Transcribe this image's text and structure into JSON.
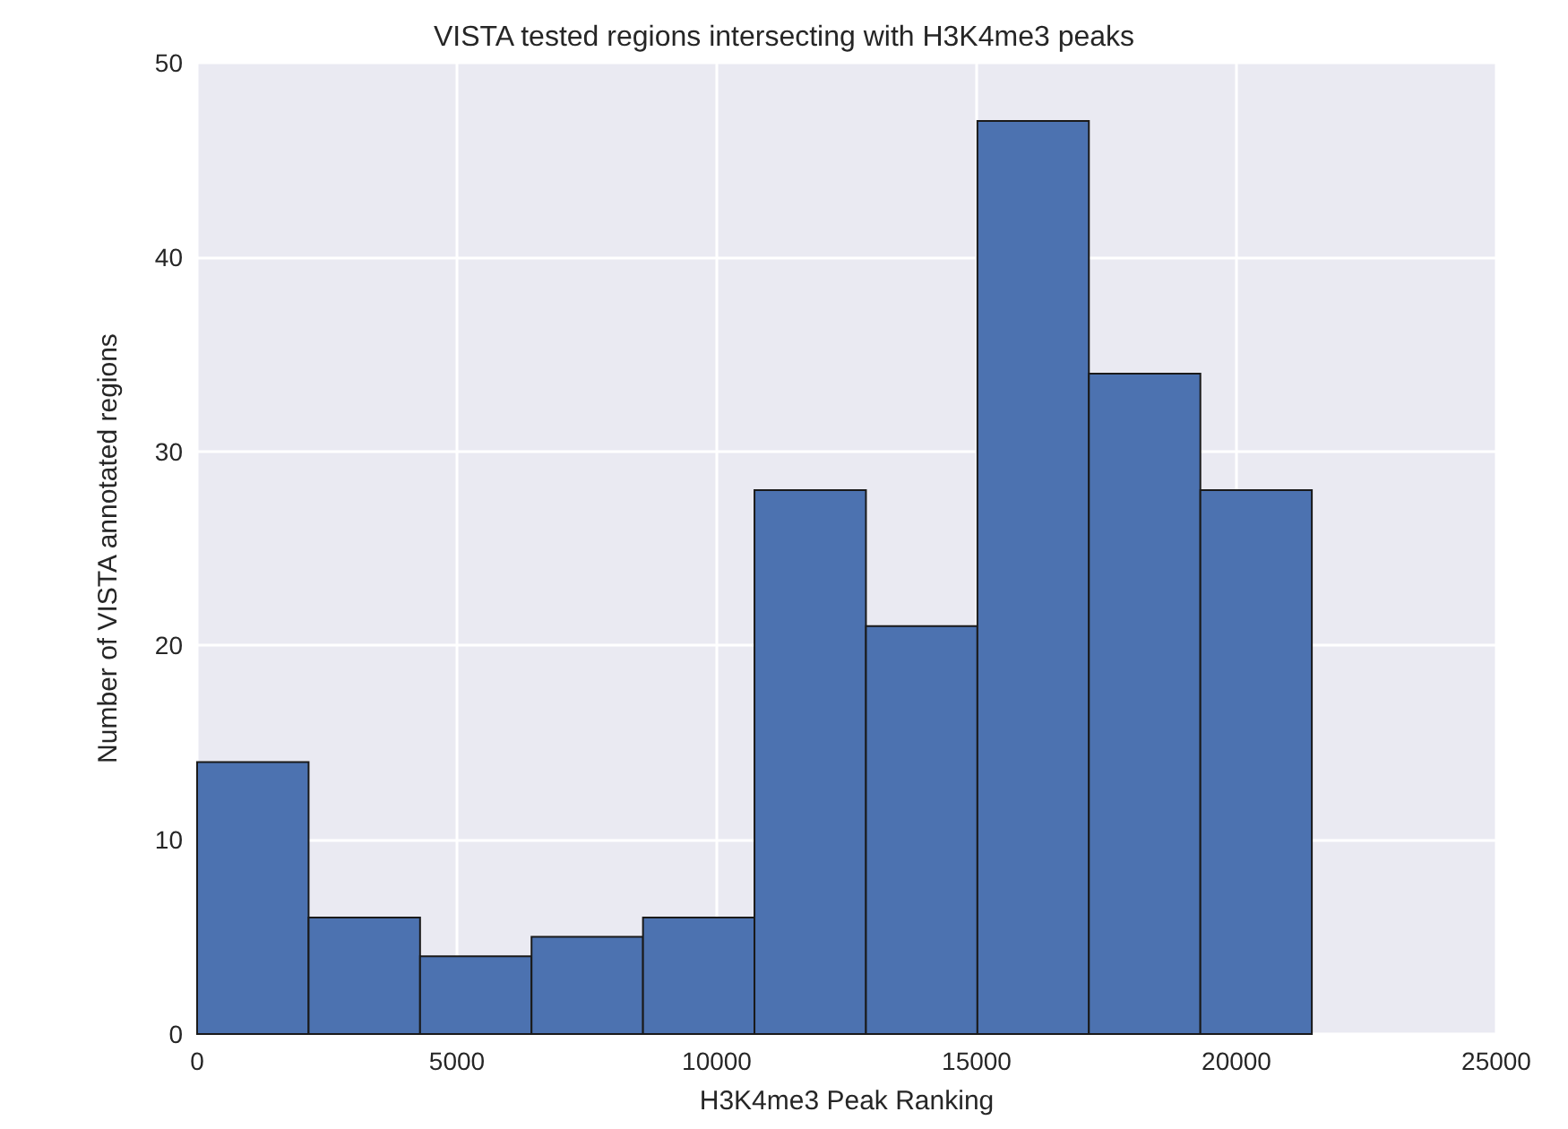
{
  "chart_data": {
    "type": "histogram",
    "title": "VISTA tested regions intersecting with H3K4me3 peaks",
    "xlabel": "H3K4me3 Peak Ranking",
    "ylabel": "Number of VISTA annotated regions",
    "bins": [
      0,
      2145,
      4290,
      6435,
      8580,
      10725,
      12870,
      15015,
      17160,
      19305,
      21450
    ],
    "values": [
      14,
      6,
      4,
      5,
      6,
      28,
      21,
      47,
      34,
      28
    ],
    "color": "#4c72b0",
    "xlim": [
      0,
      25000
    ],
    "xticks": [
      0,
      5000,
      10000,
      15000,
      20000,
      25000
    ],
    "ylim": [
      0,
      50
    ],
    "yticks": [
      0,
      10,
      20,
      30,
      40,
      50
    ],
    "grid": true
  }
}
